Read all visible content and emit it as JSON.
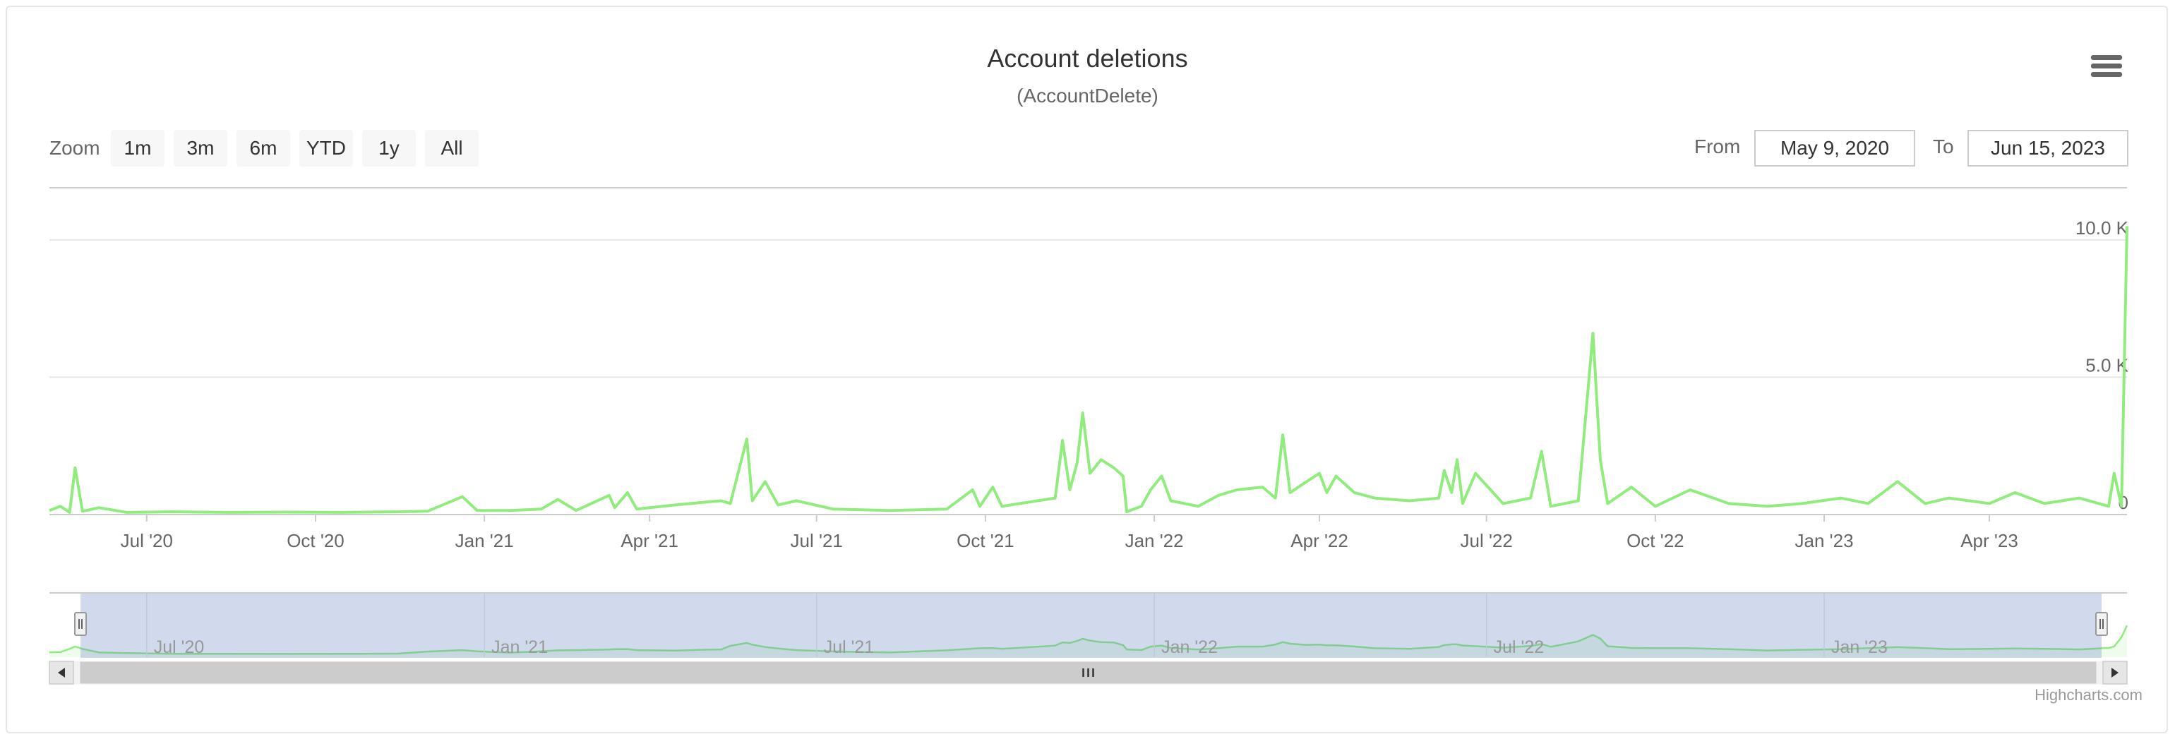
{
  "header": {
    "title": "Account deletions",
    "subtitle": "(AccountDelete)"
  },
  "range_selector": {
    "zoom_label": "Zoom",
    "buttons": [
      "1m",
      "3m",
      "6m",
      "YTD",
      "1y",
      "All"
    ],
    "from_label": "From",
    "from_value": "May 9, 2020",
    "to_label": "To",
    "to_value": "Jun 15, 2023"
  },
  "credits": "Highcharts.com",
  "icons": {
    "menu": "hamburger-menu-icon",
    "scroll_left": "arrow-left-icon",
    "scroll_right": "arrow-right-icon",
    "handle": "grip-icon"
  },
  "colors": {
    "series": "#90ed7d",
    "navigator_mask": "rgba(102,133,194,0.3)",
    "grid": "#e6e6e6",
    "scrollbar": "#cccccc"
  },
  "chart_data": {
    "type": "line",
    "title": "Account deletions",
    "subtitle": "(AccountDelete)",
    "x_start": "2020-05-09",
    "x_end": "2023-06-15",
    "ylim": [
      0,
      12000
    ],
    "y_ticks": [
      {
        "value": 0,
        "label": "0"
      },
      {
        "value": 5000,
        "label": "5.0 K"
      },
      {
        "value": 10000,
        "label": "10.0 K"
      }
    ],
    "x_ticks": [
      {
        "date": "2020-07-01",
        "label": "Jul '20"
      },
      {
        "date": "2020-10-01",
        "label": "Oct '20"
      },
      {
        "date": "2021-01-01",
        "label": "Jan '21"
      },
      {
        "date": "2021-04-01",
        "label": "Apr '21"
      },
      {
        "date": "2021-07-01",
        "label": "Jul '21"
      },
      {
        "date": "2021-10-01",
        "label": "Oct '21"
      },
      {
        "date": "2022-01-01",
        "label": "Jan '22"
      },
      {
        "date": "2022-04-01",
        "label": "Apr '22"
      },
      {
        "date": "2022-07-01",
        "label": "Jul '22"
      },
      {
        "date": "2022-10-01",
        "label": "Oct '22"
      },
      {
        "date": "2023-01-01",
        "label": "Jan '23"
      },
      {
        "date": "2023-04-01",
        "label": "Apr '23"
      }
    ],
    "navigator_ticks": [
      {
        "date": "2020-07-01",
        "label": "Jul '20"
      },
      {
        "date": "2021-01-01",
        "label": "Jan '21"
      },
      {
        "date": "2021-07-01",
        "label": "Jul '21"
      },
      {
        "date": "2022-01-01",
        "label": "Jan '22"
      },
      {
        "date": "2022-07-01",
        "label": "Jul '22"
      },
      {
        "date": "2023-01-01",
        "label": "Jan '23"
      }
    ],
    "series": [
      {
        "values": [
          [
            "2020-05-09",
            150
          ],
          [
            "2020-05-15",
            300
          ],
          [
            "2020-05-20",
            80
          ],
          [
            "2020-05-23",
            1700
          ],
          [
            "2020-05-27",
            120
          ],
          [
            "2020-06-05",
            250
          ],
          [
            "2020-06-20",
            80
          ],
          [
            "2020-07-15",
            100
          ],
          [
            "2020-08-15",
            80
          ],
          [
            "2020-09-15",
            90
          ],
          [
            "2020-10-15",
            80
          ],
          [
            "2020-11-15",
            100
          ],
          [
            "2020-12-01",
            120
          ],
          [
            "2020-12-20",
            650
          ],
          [
            "2020-12-28",
            150
          ],
          [
            "2021-01-15",
            150
          ],
          [
            "2021-02-01",
            200
          ],
          [
            "2021-02-10",
            550
          ],
          [
            "2021-02-20",
            150
          ],
          [
            "2021-03-10",
            700
          ],
          [
            "2021-03-13",
            250
          ],
          [
            "2021-03-20",
            800
          ],
          [
            "2021-03-25",
            200
          ],
          [
            "2021-04-15",
            350
          ],
          [
            "2021-05-01",
            450
          ],
          [
            "2021-05-10",
            500
          ],
          [
            "2021-05-15",
            400
          ],
          [
            "2021-05-24",
            2750
          ],
          [
            "2021-05-27",
            500
          ],
          [
            "2021-06-03",
            1200
          ],
          [
            "2021-06-10",
            350
          ],
          [
            "2021-06-20",
            500
          ],
          [
            "2021-07-10",
            200
          ],
          [
            "2021-08-10",
            150
          ],
          [
            "2021-09-10",
            200
          ],
          [
            "2021-09-24",
            900
          ],
          [
            "2021-09-28",
            300
          ],
          [
            "2021-10-05",
            1000
          ],
          [
            "2021-10-10",
            300
          ],
          [
            "2021-11-08",
            600
          ],
          [
            "2021-11-12",
            2700
          ],
          [
            "2021-11-16",
            900
          ],
          [
            "2021-11-20",
            1900
          ],
          [
            "2021-11-23",
            3700
          ],
          [
            "2021-11-27",
            1500
          ],
          [
            "2021-12-03",
            2000
          ],
          [
            "2021-12-10",
            1700
          ],
          [
            "2021-12-15",
            1400
          ],
          [
            "2021-12-17",
            100
          ],
          [
            "2021-12-25",
            300
          ],
          [
            "2021-12-30",
            900
          ],
          [
            "2022-01-05",
            1400
          ],
          [
            "2022-01-10",
            500
          ],
          [
            "2022-01-25",
            300
          ],
          [
            "2022-02-05",
            700
          ],
          [
            "2022-02-15",
            900
          ],
          [
            "2022-03-01",
            1000
          ],
          [
            "2022-03-08",
            600
          ],
          [
            "2022-03-12",
            2900
          ],
          [
            "2022-03-16",
            800
          ],
          [
            "2022-03-25",
            1200
          ],
          [
            "2022-04-01",
            1500
          ],
          [
            "2022-04-05",
            800
          ],
          [
            "2022-04-10",
            1400
          ],
          [
            "2022-04-20",
            800
          ],
          [
            "2022-05-01",
            600
          ],
          [
            "2022-05-20",
            500
          ],
          [
            "2022-06-05",
            600
          ],
          [
            "2022-06-08",
            1600
          ],
          [
            "2022-06-12",
            800
          ],
          [
            "2022-06-15",
            2000
          ],
          [
            "2022-06-18",
            400
          ],
          [
            "2022-06-25",
            1500
          ],
          [
            "2022-07-10",
            400
          ],
          [
            "2022-07-25",
            600
          ],
          [
            "2022-07-31",
            2300
          ],
          [
            "2022-08-05",
            300
          ],
          [
            "2022-08-20",
            500
          ],
          [
            "2022-08-28",
            6600
          ],
          [
            "2022-09-01",
            2000
          ],
          [
            "2022-09-05",
            400
          ],
          [
            "2022-09-18",
            1000
          ],
          [
            "2022-10-01",
            300
          ],
          [
            "2022-10-20",
            900
          ],
          [
            "2022-11-10",
            400
          ],
          [
            "2022-12-01",
            300
          ],
          [
            "2022-12-20",
            400
          ],
          [
            "2023-01-10",
            600
          ],
          [
            "2023-01-25",
            400
          ],
          [
            "2023-02-10",
            1200
          ],
          [
            "2023-02-25",
            400
          ],
          [
            "2023-03-10",
            600
          ],
          [
            "2023-04-01",
            400
          ],
          [
            "2023-04-15",
            800
          ],
          [
            "2023-05-01",
            400
          ],
          [
            "2023-05-20",
            600
          ],
          [
            "2023-06-05",
            300
          ],
          [
            "2023-06-08",
            1500
          ],
          [
            "2023-06-12",
            300
          ],
          [
            "2023-06-15",
            10500
          ]
        ]
      }
    ],
    "navigator": {
      "selected_from": "2020-05-09",
      "selected_to": "2023-06-15"
    }
  }
}
